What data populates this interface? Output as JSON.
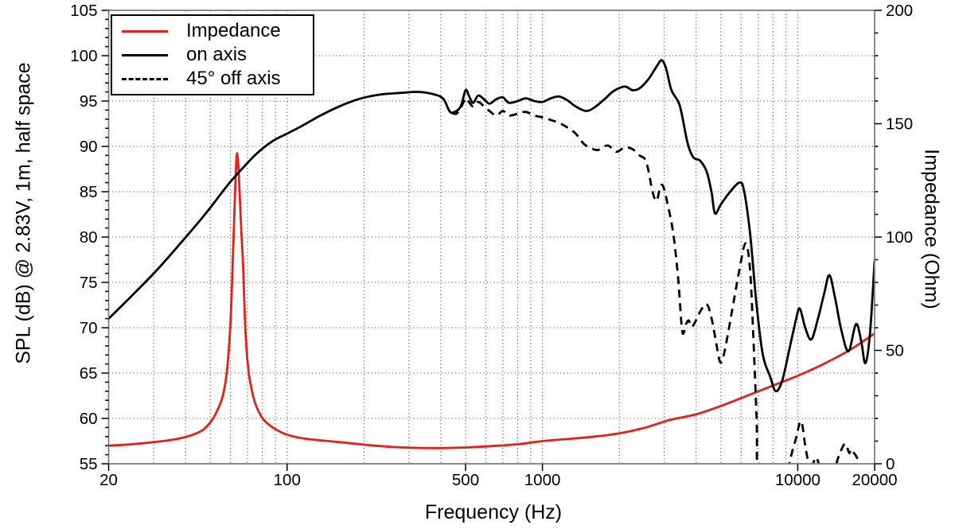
{
  "chart_data": {
    "type": "line",
    "title": "",
    "xlabel": "Frequency (Hz)",
    "ylabel_left": "SPL (dB) @ 2.83V, 1m, half space",
    "ylabel_right": "Impedance (Ohm)",
    "x_scale": "log",
    "xlim": [
      20,
      20000
    ],
    "ylim_left": [
      55,
      105
    ],
    "ylim_right": [
      0,
      200
    ],
    "grid": true,
    "legend_position": "top-left",
    "x_tick_values": [
      20,
      100,
      500,
      1000,
      10000,
      20000
    ],
    "x_tick_labels": [
      "20",
      "100",
      "500",
      "1000",
      "10000",
      "20000"
    ],
    "x_gridlines": [
      30,
      40,
      50,
      60,
      70,
      80,
      90,
      100,
      200,
      300,
      400,
      500,
      600,
      700,
      800,
      900,
      1000,
      2000,
      3000,
      4000,
      5000,
      6000,
      7000,
      8000,
      9000,
      10000
    ],
    "y_ticks_left": [
      55,
      60,
      65,
      70,
      75,
      80,
      85,
      90,
      95,
      100,
      105
    ],
    "y_minor_step_left": 1,
    "y_gridlines_left": [
      60,
      65,
      70,
      75,
      80,
      85,
      90,
      95,
      100
    ],
    "y_ticks_right": [
      0,
      50,
      100,
      150,
      200
    ],
    "y_minor_step_right": 10,
    "colors": {
      "impedance": "#e32119",
      "spl": "#000000",
      "grid": "#555555",
      "spine": "#808080",
      "tick": "#000000"
    },
    "series": [
      {
        "name": "Impedance",
        "axis": "right",
        "unit": "Ohm",
        "color": "#e32119",
        "line_style": "solid",
        "points": [
          [
            20,
            8.0
          ],
          [
            24,
            8.5
          ],
          [
            28,
            9.2
          ],
          [
            33,
            10.1
          ],
          [
            38,
            11.2
          ],
          [
            43,
            12.9
          ],
          [
            47,
            15.1
          ],
          [
            51,
            19.5
          ],
          [
            54,
            25
          ],
          [
            56,
            30
          ],
          [
            58,
            40
          ],
          [
            60,
            62
          ],
          [
            61.5,
            95
          ],
          [
            62.8,
            125
          ],
          [
            63.7,
            137
          ],
          [
            64.8,
            126
          ],
          [
            66,
            105
          ],
          [
            67.2,
            88
          ],
          [
            68.3,
            65
          ],
          [
            69.4,
            50
          ],
          [
            71,
            39
          ],
          [
            73.6,
            30
          ],
          [
            76,
            25
          ],
          [
            80,
            20.2
          ],
          [
            85,
            17.2
          ],
          [
            91,
            15
          ],
          [
            98,
            13.2
          ],
          [
            110,
            11.6
          ],
          [
            125,
            10.7
          ],
          [
            145,
            10.0
          ],
          [
            165,
            9.4
          ],
          [
            190,
            8.7
          ],
          [
            220,
            8.0
          ],
          [
            260,
            7.4
          ],
          [
            320,
            7.0
          ],
          [
            400,
            6.9
          ],
          [
            500,
            7.2
          ],
          [
            630,
            7.8
          ],
          [
            800,
            8.6
          ],
          [
            1000,
            10.0
          ],
          [
            1250,
            10.9
          ],
          [
            1600,
            12.0
          ],
          [
            2000,
            13.4
          ],
          [
            2500,
            15.8
          ],
          [
            3150,
            19.3
          ],
          [
            4000,
            21.8
          ],
          [
            5000,
            25.5
          ],
          [
            6300,
            29.9
          ],
          [
            8000,
            34.5
          ],
          [
            10000,
            38.8
          ],
          [
            12500,
            43.8
          ],
          [
            16000,
            50.2
          ],
          [
            20000,
            57.5
          ]
        ]
      },
      {
        "name": "on axis",
        "axis": "left",
        "unit": "dB",
        "color": "#000000",
        "line_style": "solid",
        "points": [
          [
            20,
            71
          ],
          [
            25,
            73.7
          ],
          [
            31,
            76.4
          ],
          [
            39,
            79.6
          ],
          [
            48,
            82.6
          ],
          [
            58,
            85.6
          ],
          [
            66,
            87.4
          ],
          [
            76,
            89.2
          ],
          [
            88,
            90.6
          ],
          [
            100,
            91.4
          ],
          [
            115,
            92.3
          ],
          [
            135,
            93.4
          ],
          [
            160,
            94.4
          ],
          [
            190,
            95.2
          ],
          [
            230,
            95.7
          ],
          [
            280,
            95.9
          ],
          [
            330,
            96.0
          ],
          [
            380,
            95.7
          ],
          [
            410,
            95.2
          ],
          [
            435,
            93.8
          ],
          [
            460,
            93.9
          ],
          [
            480,
            94.5
          ],
          [
            500,
            96.2
          ],
          [
            515,
            95.6
          ],
          [
            535,
            94.8
          ],
          [
            560,
            95.6
          ],
          [
            590,
            95.2
          ],
          [
            620,
            94.7
          ],
          [
            660,
            95.2
          ],
          [
            700,
            95.4
          ],
          [
            740,
            94.8
          ],
          [
            800,
            95.0
          ],
          [
            860,
            95.3
          ],
          [
            930,
            95.0
          ],
          [
            1000,
            94.9
          ],
          [
            1080,
            95.3
          ],
          [
            1160,
            95.5
          ],
          [
            1250,
            95.1
          ],
          [
            1350,
            94.4
          ],
          [
            1480,
            93.9
          ],
          [
            1600,
            94.3
          ],
          [
            1750,
            95.2
          ],
          [
            1900,
            96.1
          ],
          [
            2100,
            96.6
          ],
          [
            2250,
            96.2
          ],
          [
            2400,
            96.4
          ],
          [
            2600,
            97.4
          ],
          [
            2800,
            98.8
          ],
          [
            2930,
            99.5
          ],
          [
            3050,
            98.6
          ],
          [
            3200,
            96.2
          ],
          [
            3450,
            94.5
          ],
          [
            3700,
            90.4
          ],
          [
            3900,
            88.8
          ],
          [
            4150,
            88.4
          ],
          [
            4400,
            87.2
          ],
          [
            4600,
            84.9
          ],
          [
            4740,
            82.6
          ],
          [
            5000,
            83.6
          ],
          [
            5400,
            84.9
          ],
          [
            5900,
            86.0
          ],
          [
            6150,
            85.2
          ],
          [
            6500,
            80.5
          ],
          [
            6900,
            72.5
          ],
          [
            7300,
            67.0
          ],
          [
            7800,
            64.6
          ],
          [
            8200,
            63.0
          ],
          [
            8700,
            64.2
          ],
          [
            9300,
            67.8
          ],
          [
            9900,
            71.2
          ],
          [
            10200,
            72.1
          ],
          [
            10700,
            70.0
          ],
          [
            11300,
            68.7
          ],
          [
            12000,
            71.0
          ],
          [
            12700,
            73.8
          ],
          [
            13300,
            75.8
          ],
          [
            14000,
            73.3
          ],
          [
            14800,
            69.8
          ],
          [
            15800,
            67.4
          ],
          [
            16900,
            70.4
          ],
          [
            17700,
            68.6
          ],
          [
            18400,
            66.1
          ],
          [
            19200,
            69.5
          ],
          [
            20000,
            77.4
          ]
        ]
      },
      {
        "name": "45° off axis",
        "axis": "left",
        "unit": "dB",
        "color": "#000000",
        "line_style": "dashed",
        "points": [
          [
            440,
            93.7
          ],
          [
            460,
            93.6
          ],
          [
            480,
            94.3
          ],
          [
            500,
            95.3
          ],
          [
            515,
            94.9
          ],
          [
            535,
            94.4
          ],
          [
            560,
            94.9
          ],
          [
            590,
            94.4
          ],
          [
            620,
            93.9
          ],
          [
            660,
            93.4
          ],
          [
            700,
            93.9
          ],
          [
            740,
            93.4
          ],
          [
            800,
            93.6
          ],
          [
            860,
            93.8
          ],
          [
            930,
            93.4
          ],
          [
            1000,
            93.2
          ],
          [
            1080,
            92.9
          ],
          [
            1160,
            92.6
          ],
          [
            1250,
            92.1
          ],
          [
            1350,
            91.4
          ],
          [
            1450,
            90.3
          ],
          [
            1550,
            89.8
          ],
          [
            1650,
            89.6
          ],
          [
            1800,
            90.1
          ],
          [
            1950,
            89.4
          ],
          [
            2100,
            89.9
          ],
          [
            2250,
            89.7
          ],
          [
            2400,
            89.0
          ],
          [
            2550,
            88.3
          ],
          [
            2700,
            85.0
          ],
          [
            2800,
            84.0
          ],
          [
            2900,
            85.6
          ],
          [
            2980,
            85.5
          ],
          [
            3100,
            83.5
          ],
          [
            3250,
            80.5
          ],
          [
            3400,
            75.5
          ],
          [
            3530,
            69.6
          ],
          [
            3650,
            70.4
          ],
          [
            3740,
            70.8
          ],
          [
            3830,
            70.1
          ],
          [
            3960,
            70.6
          ],
          [
            4150,
            71.8
          ],
          [
            4400,
            72.6
          ],
          [
            4600,
            71.0
          ],
          [
            4800,
            68.2
          ],
          [
            4970,
            66.2
          ],
          [
            5150,
            67.2
          ],
          [
            5500,
            71.5
          ],
          [
            5900,
            76.3
          ],
          [
            6240,
            79.3
          ],
          [
            6500,
            76.5
          ],
          [
            6700,
            69.0
          ],
          [
            6900,
            60.0
          ],
          [
            7100,
            52.0
          ],
          [
            8800,
            51.5
          ],
          [
            9300,
            55.2
          ],
          [
            9800,
            57.6
          ],
          [
            10300,
            59.7
          ],
          [
            10700,
            57.0
          ],
          [
            11000,
            55.3
          ],
          [
            11400,
            54.9
          ],
          [
            11800,
            55.7
          ],
          [
            12200,
            54.4
          ],
          [
            12500,
            52.0
          ],
          [
            13600,
            52.5
          ],
          [
            14200,
            55.1
          ],
          [
            14900,
            56.7
          ],
          [
            15400,
            57.2
          ],
          [
            15900,
            56.2
          ],
          [
            16200,
            56.6
          ],
          [
            16600,
            56.2
          ],
          [
            17100,
            55.6
          ],
          [
            17500,
            54.5
          ],
          [
            17800,
            52.0
          ]
        ]
      }
    ]
  }
}
